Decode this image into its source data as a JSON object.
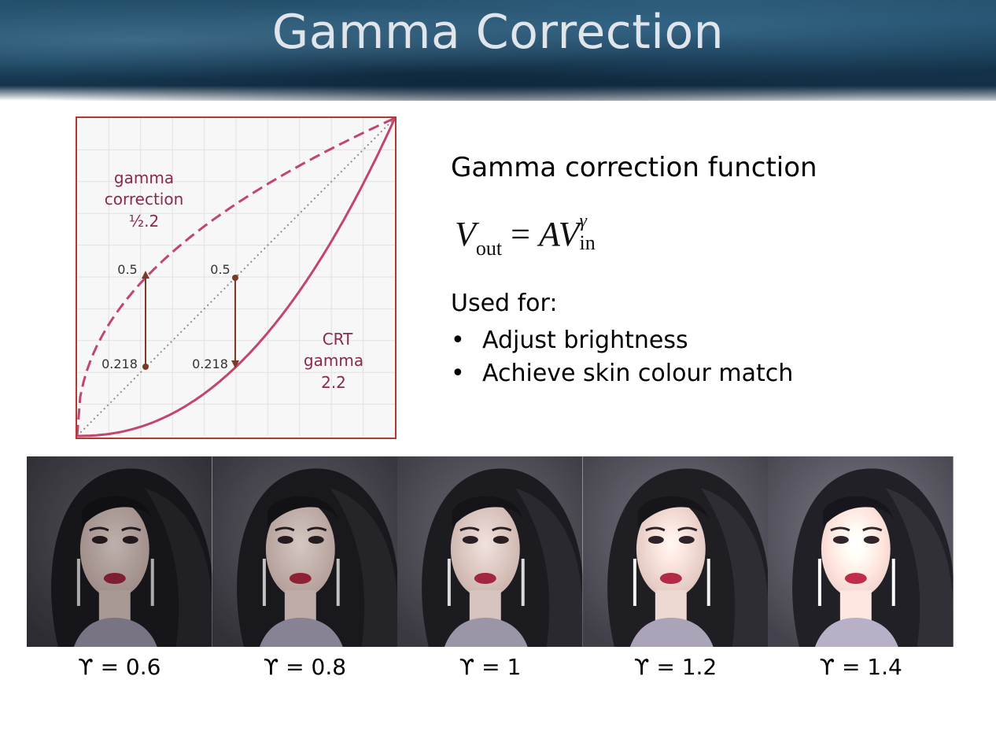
{
  "slide": {
    "title": "Gamma Correction"
  },
  "diagram": {
    "labels": {
      "correction_line1": "gamma",
      "correction_line2": "correction",
      "correction_line3": "½.2",
      "crt_line1": "CRT",
      "crt_line2": "gamma",
      "crt_line3": "2.2",
      "left_top_value": "0.5",
      "left_bottom_value": "0.218",
      "right_top_value": "0.5",
      "right_bottom_value": "0.218"
    },
    "colors": {
      "curve": "#c2456f",
      "arrow": "#7a3a26",
      "frame": "#b03a32",
      "label": "#8a2a4a"
    },
    "gamma": 2.2
  },
  "text": {
    "heading": "Gamma correction function",
    "formula_v": "V",
    "formula_out": "out",
    "formula_eq": "=",
    "formula_av": "AV",
    "formula_gamma": "γ",
    "formula_in": "in",
    "used_for": "Used for:",
    "bullets": [
      "Adjust brightness",
      "Achieve skin colour match"
    ]
  },
  "photos": [
    {
      "label": "ϒ = 0.6",
      "brightness": 0.78
    },
    {
      "label": "ϒ = 0.8",
      "brightness": 0.88
    },
    {
      "label": "ϒ = 1",
      "brightness": 1.0
    },
    {
      "label": "ϒ = 1.2",
      "brightness": 1.1
    },
    {
      "label": "ϒ = 1.4",
      "brightness": 1.18
    }
  ]
}
